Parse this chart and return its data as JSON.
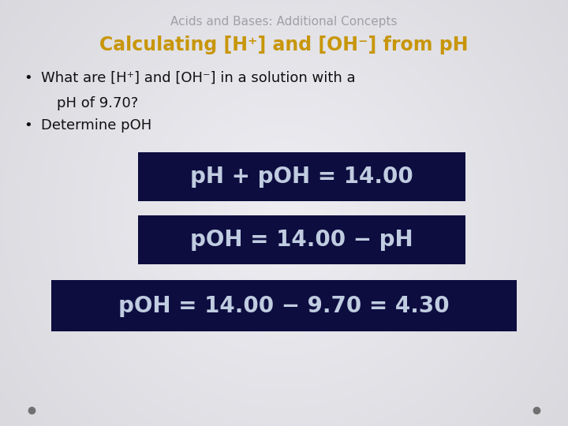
{
  "background_color": "#dcdce4",
  "title": "Acids and Bases: Additional Concepts",
  "title_color": "#a0a0a8",
  "title_fontsize": 11,
  "subtitle": "Calculating [H⁺] and [OH⁻] from pH",
  "subtitle_color": "#c8960a",
  "subtitle_fontsize": 17,
  "bullet1_line1": "What are [H⁺] and [OH⁻] in a solution with a",
  "bullet1_line2": "pH of 9.70?",
  "bullet2": "Determine pOH",
  "bullet_color": "#111111",
  "bullet_fontsize": 13,
  "box_bg": "#0d0d40",
  "box_text_color": "#c0cce0",
  "eq1": "pH + pOH = 14.00",
  "eq2": "pOH = 14.00 − pH",
  "eq3": "pOH = 14.00 − 9.70 = 4.30",
  "eq_fontsize": 20,
  "eq3_fontsize": 20,
  "dot_color": "#707070"
}
